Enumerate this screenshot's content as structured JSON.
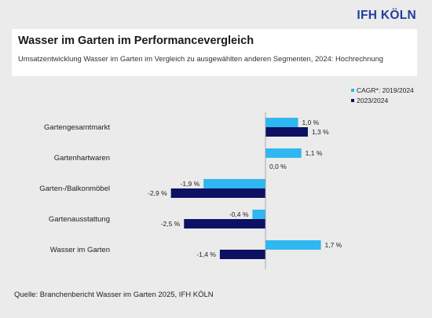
{
  "brand": "IFH KÖLN",
  "header": {
    "title": "Wasser im Garten im Performancevergleich",
    "subtitle": "Umsatzentwicklung Wasser im Garten im Vergleich zu ausgewählten anderen Segmenten, 2024: Hochrechnung"
  },
  "source": "Quelle: Branchenbericht Wasser im Garten 2025, IFH KÖLN",
  "colors": {
    "cagr": "#2eb7f0",
    "y2023": "#0c1164",
    "background": "#ebebeb"
  },
  "chart_data": {
    "type": "bar",
    "orientation": "horizontal",
    "categories": [
      "Gartengesamtmarkt",
      "Gartenhartwaren",
      "Garten-/Balkonmöbel",
      "Gartenausstattung",
      "Wasser im Garten"
    ],
    "series": [
      {
        "name": "CAGR*: 2019/2024",
        "values": [
          1.0,
          1.1,
          -1.9,
          -0.4,
          1.7
        ],
        "labels": [
          "1,0 %",
          "1,1 %",
          "-1,9 %",
          "-0,4 %",
          "1,7 %"
        ]
      },
      {
        "name": "2023/2024",
        "values": [
          1.3,
          0.0,
          -2.9,
          -2.5,
          -1.4
        ],
        "labels": [
          "1,3 %",
          "0,0 %",
          "-2,9 %",
          "-2,5 %",
          "-1,4 %"
        ]
      }
    ],
    "legend_position": "top-right",
    "grid": false
  }
}
